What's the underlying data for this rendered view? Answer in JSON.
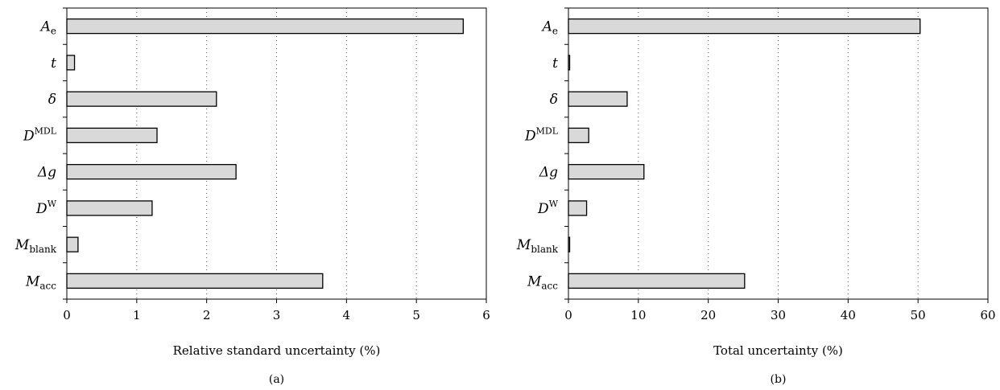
{
  "chart_data": [
    {
      "type": "bar",
      "orientation": "horizontal",
      "panel_label": "(a)",
      "xlabel": "Relative standard uncertainty (%)",
      "ylabel": "",
      "xlim": [
        0,
        6
      ],
      "xticks": [
        "0",
        "1",
        "2",
        "3",
        "4",
        "5",
        "6"
      ],
      "grid": "vertical dotted",
      "bar_color": "#d9d9d9",
      "categories": [
        {
          "base": "A",
          "sub": "e",
          "sup": ""
        },
        {
          "base": "t",
          "sub": "",
          "sup": ""
        },
        {
          "base": "δ",
          "sub": "",
          "sup": ""
        },
        {
          "base": "D",
          "sub": "",
          "sup": "MDL"
        },
        {
          "base": "Δg",
          "sub": "",
          "sup": ""
        },
        {
          "base": "D",
          "sub": "",
          "sup": "W"
        },
        {
          "base": "M",
          "sub": "blank",
          "sup": ""
        },
        {
          "base": "M",
          "sub": "acc",
          "sup": ""
        }
      ],
      "values": [
        5.67,
        0.11,
        2.14,
        1.29,
        2.42,
        1.22,
        0.16,
        3.66
      ]
    },
    {
      "type": "bar",
      "orientation": "horizontal",
      "panel_label": "(b)",
      "xlabel": "Total uncertainty (%)",
      "ylabel": "",
      "xlim": [
        0,
        60
      ],
      "xticks": [
        "0",
        "10",
        "20",
        "30",
        "40",
        "50",
        "60"
      ],
      "grid": "vertical dotted",
      "bar_color": "#d9d9d9",
      "categories": [
        {
          "base": "A",
          "sub": "e",
          "sup": ""
        },
        {
          "base": "t",
          "sub": "",
          "sup": ""
        },
        {
          "base": "δ",
          "sub": "",
          "sup": ""
        },
        {
          "base": "D",
          "sub": "",
          "sup": "MDL"
        },
        {
          "base": "Δg",
          "sub": "",
          "sup": ""
        },
        {
          "base": "D",
          "sub": "",
          "sup": "W"
        },
        {
          "base": "M",
          "sub": "blank",
          "sup": ""
        },
        {
          "base": "M",
          "sub": "acc",
          "sup": ""
        }
      ],
      "values": [
        50.3,
        0.04,
        8.4,
        2.9,
        10.8,
        2.6,
        0.05,
        25.2
      ]
    }
  ]
}
